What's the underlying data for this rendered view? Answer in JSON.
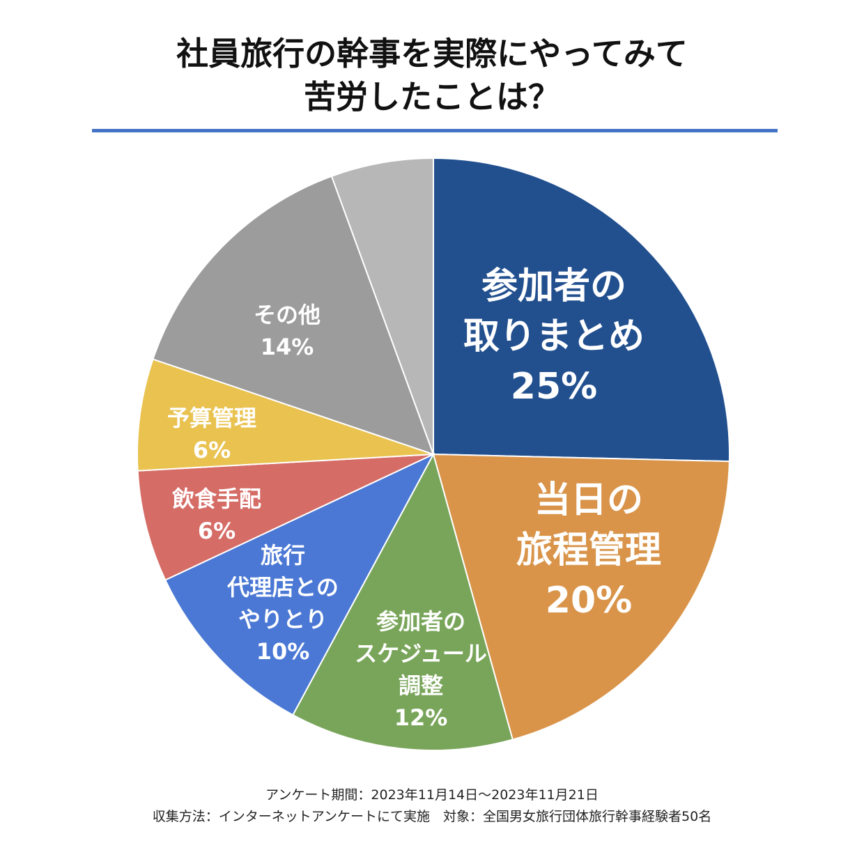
{
  "chart_data": {
    "type": "pie",
    "title_lines": [
      "社員旅行の幹事を実際にやってみて",
      "苦労したことは？"
    ],
    "slices": [
      {
        "label_lines": [
          "参加者の",
          "取りまとめ",
          "25%"
        ],
        "value": 25,
        "color": "#22508f"
      },
      {
        "label_lines": [
          "当日の",
          "旅程管理",
          "20%"
        ],
        "value": 20,
        "color": "#d9944a"
      },
      {
        "label_lines": [
          "参加者の",
          "スケジュール",
          "調整",
          "12%"
        ],
        "value": 12,
        "color": "#79a55a"
      },
      {
        "label_lines": [
          "旅行",
          "代理店との",
          "やりとり",
          "10%"
        ],
        "value": 10,
        "color": "#4a78d4"
      },
      {
        "label_lines": [
          "飲食手配",
          "6%"
        ],
        "value": 6,
        "color": "#d56c66"
      },
      {
        "label_lines": [
          "予算管理",
          "6%"
        ],
        "value": 6,
        "color": "#e9c250"
      },
      {
        "label_lines": [
          "その他",
          "14%"
        ],
        "value": 14,
        "color": "#9c9c9c"
      },
      {
        "label_lines": [],
        "value": 5.5,
        "color": "#b7b7b7"
      }
    ]
  },
  "footer": {
    "line1": "アンケート期間：2023年11月14日〜2023年11月21日",
    "line2": "収集方法：インターネットアンケートにて実施　対象：全国男女旅行団体旅行幹事経験者50名"
  }
}
